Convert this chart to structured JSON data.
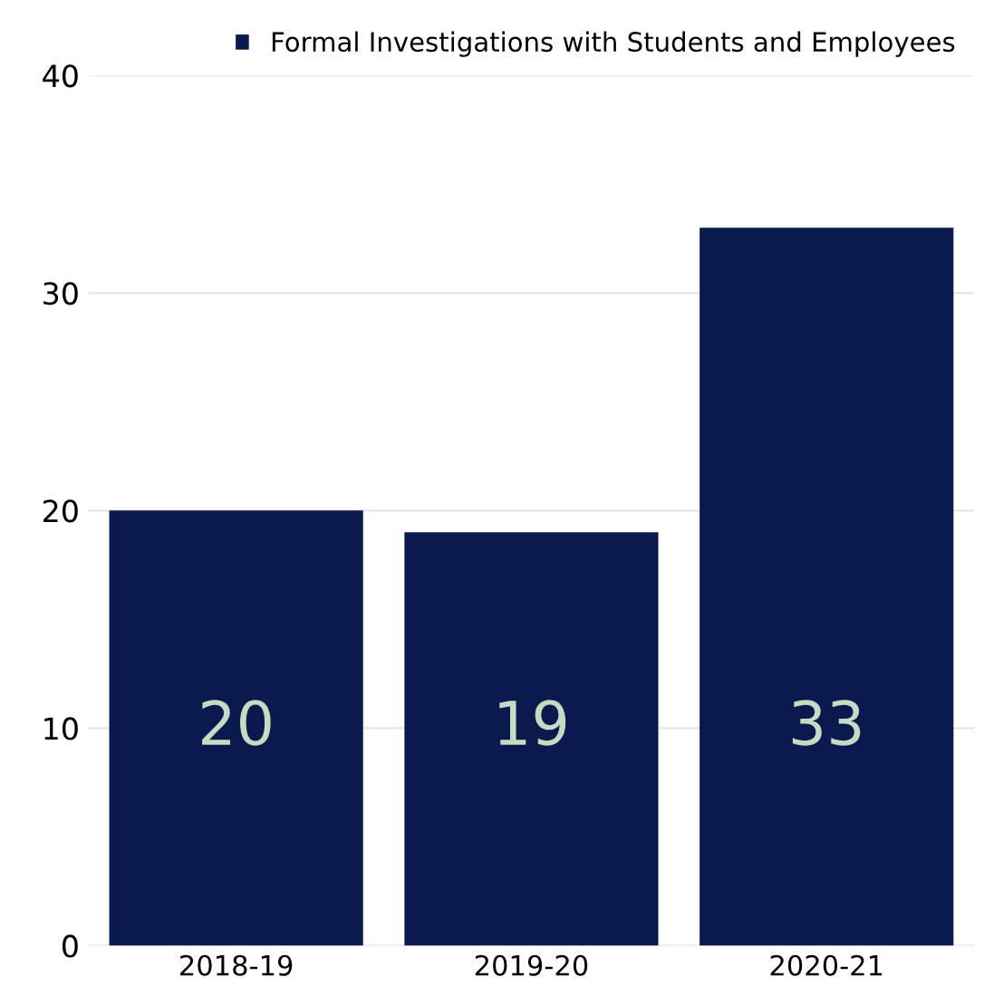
{
  "chart_data": {
    "type": "bar",
    "categories": [
      "2018-19",
      "2019-20",
      "2020-21"
    ],
    "series": [
      {
        "name": "Formal Investigations with Students and Employees",
        "color": "#0b1a4e",
        "values": [
          20,
          19,
          33
        ]
      }
    ],
    "ylim": [
      0,
      40
    ],
    "yticks": [
      0,
      10,
      20,
      30,
      40
    ],
    "grid": "y",
    "legend": "top right",
    "data_labels": true
  }
}
